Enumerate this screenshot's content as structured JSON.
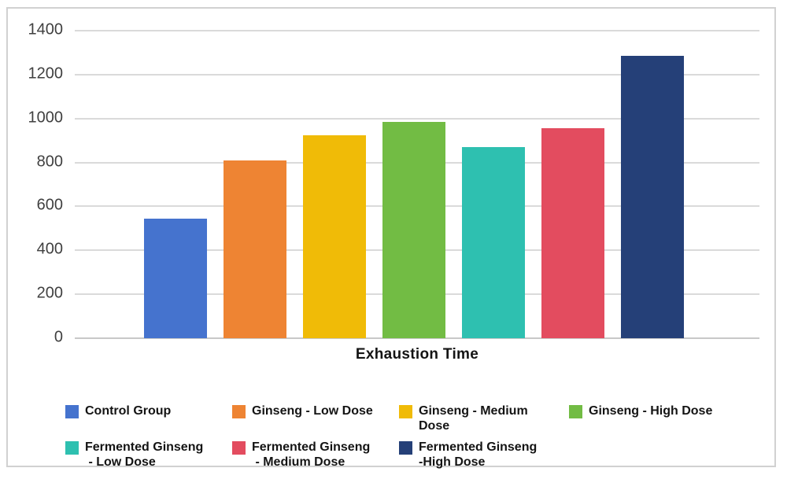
{
  "chart_data": {
    "type": "bar",
    "title": "",
    "xlabel": "Exhaustion Time",
    "ylabel": "",
    "ylim": [
      0,
      1400
    ],
    "yticks": [
      0,
      200,
      400,
      600,
      800,
      1000,
      1200,
      1400
    ],
    "grid": true,
    "legend_position": "bottom",
    "categories": [
      "Control Group",
      "Ginseng - Low Dose",
      "Ginseng - Medium Dose",
      "Ginseng - High Dose",
      "Fermented Ginseng - Low Dose",
      "Fermented Ginseng - Medium Dose",
      "Fermented Ginseng -High Dose"
    ],
    "values": [
      545,
      810,
      925,
      985,
      870,
      955,
      1285
    ],
    "colors": [
      "#4573CE",
      "#EE8433",
      "#F0BB07",
      "#72BC44",
      "#2EC0B0",
      "#E34C5F",
      "#254078"
    ],
    "legend_display_labels": [
      "Control Group",
      "Ginseng - Low Dose",
      "Ginseng - Medium\nDose",
      "Ginseng - High Dose",
      "Fermented Ginseng\n - Low Dose",
      "Fermented Ginseng\n - Medium Dose",
      "Fermented Ginseng\n-High Dose"
    ]
  },
  "styles": {
    "gridline_color": "#dadada",
    "baseline_color": "#c8c8c8",
    "tick_label_color": "#404040",
    "frame_border_color": "#d1d1d1",
    "text_color": "#141414"
  }
}
